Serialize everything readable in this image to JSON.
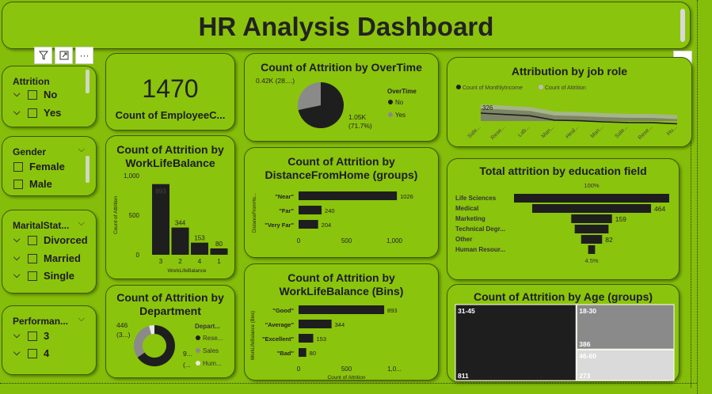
{
  "header": {
    "title": "HR Analysis Dashboard"
  },
  "toolbar": {
    "filter_icon": "filter-icon",
    "focus_icon": "focus-mode-icon",
    "more": "···"
  },
  "more_options_right": "···",
  "slicers": {
    "attrition": {
      "title": "Attrition",
      "items": [
        "No",
        "Yes"
      ]
    },
    "gender": {
      "title": "Gender",
      "items": [
        "Female",
        "Male"
      ]
    },
    "marital": {
      "title": "MaritalStat...",
      "items": [
        "Divorced",
        "Married",
        "Single"
      ]
    },
    "performance": {
      "title": "Performan...",
      "items": [
        "3",
        "4"
      ]
    }
  },
  "kpi": {
    "value": "1470",
    "label": "Count of EmployeeC..."
  },
  "overtime": {
    "title": "Count of Attrition by OverTime",
    "legend_title": "OverTime",
    "legend": [
      "No",
      "Yes"
    ],
    "labels": {
      "yes": "0.42K (28....)",
      "no_value": "1.05K",
      "no_pct": "(71.7%)"
    },
    "colors": {
      "No": "#1e1e1e",
      "Yes": "#8a8a8a"
    }
  },
  "job_role": {
    "title": "Attribution by job role",
    "legend": [
      "Count of MonthlyIncome",
      "Count of Attrition"
    ],
    "peak_label": "326",
    "x_labels": [
      "Sale...",
      "Rese...",
      "Lab...",
      "Man...",
      "Heal...",
      "Man...",
      "Sale...",
      "Rese...",
      "Hu..."
    ]
  },
  "wlb": {
    "title_line1": "Count of Attrition by",
    "title_line2": "WorkLifeBalance",
    "ylabel": "Count of Attrition",
    "xlabel": "WorkLifeBalance",
    "y_ticks": [
      "1,000",
      "500",
      "0"
    ]
  },
  "distance": {
    "title_line1": "Count of Attrition by",
    "title_line2": "DistanceFromHome (groups)",
    "ylabel": "DistanceFromHo...",
    "x_ticks": [
      "0",
      "500",
      "1,000"
    ]
  },
  "wlb_bins": {
    "title_line1": "Count of Attrition by",
    "title_line2": "WorkLifeBalance (Bins)",
    "ylabel": "WorkLifeBalance (Bins)",
    "xlabel": "Count of Attrition",
    "x_ticks": [
      "0",
      "500",
      "1,0..."
    ]
  },
  "department": {
    "title_line1": "Count of Attrition by",
    "title_line2": "Department",
    "legend_title": "Depart...",
    "legend": [
      "Rese...",
      "Sales",
      "Hum..."
    ],
    "labels": {
      "left_value": "446",
      "left_pct": "(3...)",
      "right_value": "9...",
      "right_pct": "(..."
    }
  },
  "education": {
    "title": "Total attrition by education field",
    "top_pct": "100%",
    "bottom_pct": "4.5%",
    "categories": [
      "Life Sciences",
      "Medical",
      "Marketing",
      "Technical Degr...",
      "Other",
      "Human Resour..."
    ],
    "value_labels": [
      "",
      "464",
      "159",
      "",
      "82",
      ""
    ]
  },
  "age": {
    "title": "Count of Attrition by Age (groups)",
    "groups": [
      {
        "name": "31-45",
        "value": "811"
      },
      {
        "name": "18-30",
        "value": "386"
      },
      {
        "name": "46-60",
        "value": "273"
      }
    ]
  },
  "chart_data": [
    {
      "type": "bar",
      "title": "Count of Attrition by WorkLifeBalance",
      "categories": [
        "3",
        "2",
        "4",
        "1"
      ],
      "values": [
        893,
        344,
        153,
        80
      ],
      "xlabel": "WorkLifeBalance",
      "ylabel": "Count of Attrition",
      "ylim": [
        0,
        1000
      ]
    },
    {
      "type": "bar",
      "title": "Count of Attrition by DistanceFromHome (groups)",
      "categories": [
        "\"Near\"",
        "\"Far\"",
        "\"Very Far\""
      ],
      "values": [
        1026,
        240,
        204
      ],
      "xlim": [
        0,
        1000
      ]
    },
    {
      "type": "bar",
      "title": "Count of Attrition by WorkLifeBalance (Bins)",
      "categories": [
        "\"Good\"",
        "\"Average\"",
        "\"Excellent\"",
        "\"Bad\""
      ],
      "values": [
        893,
        344,
        153,
        80
      ],
      "xlabel": "Count of Attrition",
      "xlim": [
        0,
        1000
      ]
    },
    {
      "type": "pie",
      "title": "Count of Attrition by OverTime",
      "categories": [
        "No",
        "Yes"
      ],
      "values": [
        1054,
        416
      ]
    },
    {
      "type": "pie",
      "title": "Count of Attrition by Department",
      "categories": [
        "Rese...",
        "Sales",
        "Hum..."
      ],
      "values": [
        961,
        446,
        63
      ]
    },
    {
      "type": "bar",
      "title": "Total attrition by education field",
      "categories": [
        "Life Sciences",
        "Medical",
        "Marketing",
        "Technical Degr...",
        "Other",
        "Human Resour..."
      ],
      "values": [
        606,
        464,
        159,
        132,
        82,
        27
      ]
    },
    {
      "type": "heatmap",
      "title": "Count of Attrition by Age (groups)",
      "categories": [
        "31-45",
        "18-30",
        "46-60"
      ],
      "values": [
        811,
        386,
        273
      ]
    },
    {
      "type": "area",
      "title": "Attribution by job role",
      "categories": [
        "Sale...",
        "Rese...",
        "Lab...",
        "Man...",
        "Heal...",
        "Man...",
        "Sale...",
        "Rese...",
        "Hu..."
      ],
      "series": [
        {
          "name": "Count of MonthlyIncome",
          "values": [
            326,
            292,
            259,
            145,
            131,
            102,
            83,
            80,
            52
          ]
        },
        {
          "name": "Count of Attrition",
          "values": [
            326,
            292,
            259,
            145,
            131,
            102,
            83,
            80,
            52
          ]
        }
      ]
    }
  ]
}
